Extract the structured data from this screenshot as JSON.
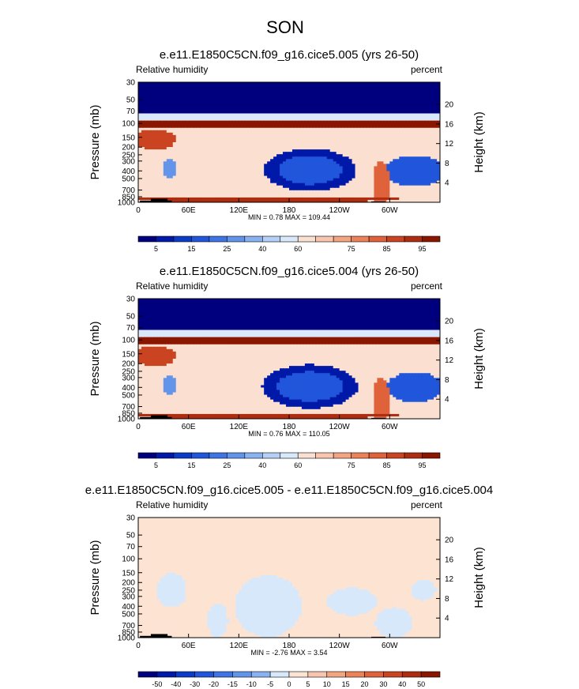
{
  "figure": {
    "season": "SON",
    "left_label": "Relative humidity",
    "right_label": "percent",
    "ylabel": "Pressure (mb)",
    "ylabel_right": "Height (km)"
  },
  "chart_data": [
    {
      "type": "heatmap",
      "title": "e.e11.E1850C5CN.f09_g16.cice5.005 (yrs 26-50)",
      "left_label": "Relative humidity",
      "right_label": "percent",
      "ylabel": "Pressure (mb)",
      "ylabel_right": "Height (km)",
      "x_ticks": [
        "0",
        "60E",
        "120E",
        "180",
        "120W",
        "60W"
      ],
      "x_tick_values": [
        0,
        60,
        120,
        180,
        240,
        300
      ],
      "xlim": [
        0,
        360
      ],
      "y_ticks": [
        "30",
        "50",
        "70",
        "100",
        "150",
        "200",
        "250",
        "300",
        "400",
        "500",
        "700",
        "850",
        "1000"
      ],
      "y_tick_values": [
        30,
        50,
        70,
        100,
        150,
        200,
        250,
        300,
        400,
        500,
        700,
        850,
        1000
      ],
      "ylim": [
        1000,
        30
      ],
      "y_scale": "log",
      "y_right_ticks": [
        "4",
        "8",
        "12",
        "16",
        "20"
      ],
      "y_right_tick_values": [
        4,
        8,
        12,
        16,
        20
      ],
      "stats": "MIN =   0.78  MAX = 109.44",
      "min": 0.78,
      "max": 109.44,
      "levels": [
        5,
        10,
        15,
        20,
        25,
        30,
        40,
        50,
        60,
        65,
        70,
        75,
        80,
        85,
        90,
        95
      ],
      "colorbar_labels": [
        "5",
        "15",
        "25",
        "40",
        "60",
        "75",
        "85",
        "95"
      ],
      "colors": [
        "#00007f",
        "#0019a8",
        "#0a3cc8",
        "#2156db",
        "#3e74e4",
        "#6294ea",
        "#8bb2f0",
        "#b4d0f6",
        "#dae8fb",
        "#fbe0d2",
        "#f8c6ae",
        "#f3a481",
        "#ec8358",
        "#e0623a",
        "#cb4422",
        "#ae2d10",
        "#8b1600"
      ],
      "field": {
        "bands": [
          {
            "p": [
              30,
              75
            ],
            "value": 2
          },
          {
            "p": [
              75,
              95
            ],
            "value": 55
          },
          {
            "p": [
              95,
              115
            ],
            "value": 95
          },
          {
            "p": [
              115,
              1000
            ],
            "value": 62
          }
        ],
        "blobs": [
          {
            "lon": 205,
            "p": 390,
            "rlon": 55,
            "rlp": 0.62,
            "value": 8
          },
          {
            "lon": 205,
            "p": 390,
            "rlon": 38,
            "rlp": 0.42,
            "value": 18
          },
          {
            "lon": 330,
            "p": 400,
            "rlon": 35,
            "rlp": 0.45,
            "value": 18
          },
          {
            "lon": 38,
            "p": 380,
            "rlon": 8,
            "rlp": 0.3,
            "value": 25
          },
          {
            "lon": 20,
            "p": 160,
            "rlon": 25,
            "rlp": 0.3,
            "value": 88
          },
          {
            "lon": 290,
            "p": 600,
            "rlon": 10,
            "rlp": 0.7,
            "value": 80
          },
          {
            "lon": 150,
            "p": 920,
            "rlon": 170,
            "rlp": 0.07,
            "value": 90
          }
        ],
        "topography": [
          {
            "lon": [
              2,
              40
            ],
            "p": 950
          },
          {
            "lon": [
              15,
              35
            ],
            "p": 900
          },
          {
            "lon": [
              278,
              295
            ],
            "p": 975
          }
        ]
      }
    },
    {
      "type": "heatmap",
      "title": "e.e11.E1850C5CN.f09_g16.cice5.004 (yrs 26-50)",
      "left_label": "Relative humidity",
      "right_label": "percent",
      "ylabel": "Pressure (mb)",
      "ylabel_right": "Height (km)",
      "x_ticks": [
        "0",
        "60E",
        "120E",
        "180",
        "120W",
        "60W"
      ],
      "x_tick_values": [
        0,
        60,
        120,
        180,
        240,
        300
      ],
      "xlim": [
        0,
        360
      ],
      "y_ticks": [
        "30",
        "50",
        "70",
        "100",
        "150",
        "200",
        "250",
        "300",
        "400",
        "500",
        "700",
        "850",
        "1000"
      ],
      "y_tick_values": [
        30,
        50,
        70,
        100,
        150,
        200,
        250,
        300,
        400,
        500,
        700,
        850,
        1000
      ],
      "ylim": [
        1000,
        30
      ],
      "y_scale": "log",
      "y_right_ticks": [
        "4",
        "8",
        "12",
        "16",
        "20"
      ],
      "y_right_tick_values": [
        4,
        8,
        12,
        16,
        20
      ],
      "stats": "MIN =   0.76  MAX = 110.05",
      "min": 0.76,
      "max": 110.05,
      "levels": [
        5,
        10,
        15,
        20,
        25,
        30,
        40,
        50,
        60,
        65,
        70,
        75,
        80,
        85,
        90,
        95
      ],
      "colorbar_labels": [
        "5",
        "15",
        "25",
        "40",
        "60",
        "75",
        "85",
        "95"
      ],
      "colors": [
        "#00007f",
        "#0019a8",
        "#0a3cc8",
        "#2156db",
        "#3e74e4",
        "#6294ea",
        "#8bb2f0",
        "#b4d0f6",
        "#dae8fb",
        "#fbe0d2",
        "#f8c6ae",
        "#f3a481",
        "#ec8358",
        "#e0623a",
        "#cb4422",
        "#ae2d10",
        "#8b1600"
      ],
      "field": {
        "bands": [
          {
            "p": [
              30,
              75
            ],
            "value": 2
          },
          {
            "p": [
              75,
              95
            ],
            "value": 55
          },
          {
            "p": [
              95,
              115
            ],
            "value": 95
          },
          {
            "p": [
              115,
              1000
            ],
            "value": 63
          }
        ],
        "blobs": [
          {
            "lon": 205,
            "p": 390,
            "rlon": 57,
            "rlp": 0.64,
            "value": 8
          },
          {
            "lon": 205,
            "p": 390,
            "rlon": 40,
            "rlp": 0.43,
            "value": 18
          },
          {
            "lon": 330,
            "p": 400,
            "rlon": 34,
            "rlp": 0.44,
            "value": 18
          },
          {
            "lon": 38,
            "p": 380,
            "rlon": 8,
            "rlp": 0.3,
            "value": 25
          },
          {
            "lon": 20,
            "p": 160,
            "rlon": 25,
            "rlp": 0.3,
            "value": 88
          },
          {
            "lon": 290,
            "p": 600,
            "rlon": 10,
            "rlp": 0.7,
            "value": 80
          },
          {
            "lon": 150,
            "p": 920,
            "rlon": 170,
            "rlp": 0.07,
            "value": 90
          }
        ],
        "topography": [
          {
            "lon": [
              2,
              40
            ],
            "p": 950
          },
          {
            "lon": [
              15,
              35
            ],
            "p": 900
          },
          {
            "lon": [
              278,
              295
            ],
            "p": 975
          }
        ]
      }
    },
    {
      "type": "heatmap",
      "title": "e.e11.E1850C5CN.f09_g16.cice5.005 - e.e11.E1850C5CN.f09_g16.cice5.004",
      "left_label": "Relative humidity",
      "right_label": "percent",
      "ylabel": "Pressure (mb)",
      "ylabel_right": "Height (km)",
      "x_ticks": [
        "0",
        "60E",
        "120E",
        "180",
        "120W",
        "60W"
      ],
      "x_tick_values": [
        0,
        60,
        120,
        180,
        240,
        300
      ],
      "xlim": [
        0,
        360
      ],
      "y_ticks": [
        "30",
        "50",
        "70",
        "100",
        "150",
        "200",
        "250",
        "300",
        "400",
        "500",
        "700",
        "850",
        "1000"
      ],
      "y_tick_values": [
        30,
        50,
        70,
        100,
        150,
        200,
        250,
        300,
        400,
        500,
        700,
        850,
        1000
      ],
      "ylim": [
        1000,
        30
      ],
      "y_scale": "log",
      "y_right_ticks": [
        "4",
        "8",
        "12",
        "16",
        "20"
      ],
      "y_right_tick_values": [
        4,
        8,
        12,
        16,
        20
      ],
      "stats": "MIN =  -2.76  MAX =   3.54",
      "min": -2.76,
      "max": 3.54,
      "levels": [
        -50,
        -40,
        -30,
        -20,
        -15,
        -10,
        -5,
        0,
        5,
        10,
        15,
        20,
        30,
        40,
        50
      ],
      "colorbar_labels": [
        "-50",
        "-40",
        "-30",
        "-20",
        "-15",
        "-10",
        "-5",
        "0",
        "5",
        "10",
        "15",
        "20",
        "30",
        "40",
        "50"
      ],
      "colors": [
        "#00007f",
        "#0019a8",
        "#0a3cc8",
        "#2156db",
        "#3e74e4",
        "#6294ea",
        "#8bb2f0",
        "#d8e8fb",
        "#fce3d2",
        "#f8c6ae",
        "#f3a481",
        "#ec8358",
        "#e0623a",
        "#cb4422",
        "#ae2d10",
        "#8b1600"
      ],
      "field": {
        "bands": [
          {
            "p": [
              30,
              1000
            ],
            "value": 1
          }
        ],
        "blobs": [
          {
            "lon": 155,
            "p": 400,
            "rlon": 40,
            "rlp": 0.9,
            "value": -1
          },
          {
            "lon": 255,
            "p": 350,
            "rlon": 30,
            "rlp": 0.4,
            "value": -1
          },
          {
            "lon": 305,
            "p": 650,
            "rlon": 22,
            "rlp": 0.45,
            "value": -1
          },
          {
            "lon": 40,
            "p": 250,
            "rlon": 18,
            "rlp": 0.5,
            "value": -1
          },
          {
            "lon": 95,
            "p": 600,
            "rlon": 12,
            "rlp": 0.5,
            "value": -1
          },
          {
            "lon": 340,
            "p": 250,
            "rlon": 15,
            "rlp": 0.3,
            "value": -1
          }
        ],
        "topography": [
          {
            "lon": [
              2,
              40
            ],
            "p": 950
          },
          {
            "lon": [
              15,
              35
            ],
            "p": 900
          },
          {
            "lon": [
              278,
              295
            ],
            "p": 975
          }
        ]
      }
    }
  ]
}
